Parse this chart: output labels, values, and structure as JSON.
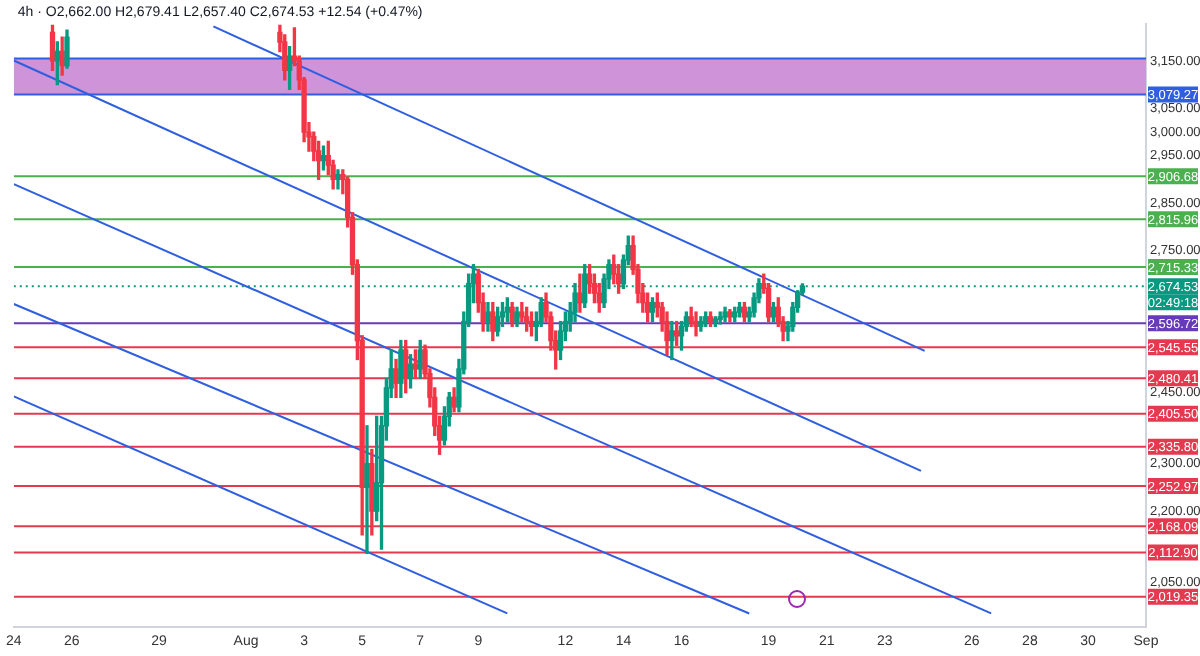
{
  "chart_data": {
    "type": "candlestick",
    "title": "4h · O2,662.00 H2,679.41 L2,657.40 C2,674.53 +12.54 (+0.47%)",
    "x": [
      "--07-25T08:00",
      "--07-25T12:00",
      "--07-25T16:00",
      "--07-25T20:00",
      "--08-02T04:00",
      "--08-02T08:00",
      "--08-02T12:00",
      "--08-02T16:00",
      "--08-02T20:00",
      "--08-03T00:00",
      "--08-03T04:00",
      "--08-03T08:00",
      "--08-03T12:00",
      "--08-03T16:00",
      "--08-03T20:00",
      "--08-04T00:00",
      "--08-04T04:00",
      "--08-04T08:00",
      "--08-04T12:00",
      "--08-04T16:00",
      "--08-04T20:00",
      "--08-05T00:00",
      "--08-05T04:00",
      "--08-05T08:00",
      "--08-05T12:00",
      "--08-05T16:00",
      "--08-05T20:00",
      "--08-06T00:00",
      "--08-06T04:00",
      "--08-06T08:00",
      "--08-06T12:00",
      "--08-06T16:00",
      "--08-06T20:00",
      "--08-07T00:00",
      "--08-07T04:00",
      "--08-07T08:00",
      "--08-07T12:00",
      "--08-07T16:00",
      "--08-07T20:00",
      "--08-08T00:00",
      "--08-08T04:00",
      "--08-08T08:00",
      "--08-08T12:00",
      "--08-08T16:00",
      "--08-08T20:00",
      "--08-09T00:00",
      "--08-09T04:00",
      "--08-09T08:00",
      "--08-09T12:00",
      "--08-09T16:00",
      "--08-09T20:00",
      "--08-10T00:00",
      "--08-10T04:00",
      "--08-10T08:00",
      "--08-10T12:00",
      "--08-10T16:00",
      "--08-10T20:00",
      "--08-11T00:00",
      "--08-11T04:00",
      "--08-11T08:00",
      "--08-11T12:00",
      "--08-11T16:00",
      "--08-11T20:00",
      "--08-12T00:00",
      "--08-12T04:00",
      "--08-12T08:00",
      "--08-12T12:00",
      "--08-12T16:00",
      "--08-12T20:00",
      "--08-13T00:00",
      "--08-13T04:00",
      "--08-13T08:00",
      "--08-13T12:00",
      "--08-13T16:00",
      "--08-13T20:00",
      "--08-14T00:00",
      "--08-14T04:00",
      "--08-14T08:00",
      "--08-14T12:00",
      "--08-14T16:00",
      "--08-14T20:00",
      "--08-15T00:00",
      "--08-15T04:00",
      "--08-15T08:00",
      "--08-15T12:00",
      "--08-15T16:00",
      "--08-15T20:00",
      "--08-16T00:00",
      "--08-16T04:00",
      "--08-16T08:00",
      "--08-16T12:00",
      "--08-16T16:00",
      "--08-16T20:00",
      "--08-17T00:00",
      "--08-17T04:00",
      "--08-17T08:00",
      "--08-17T12:00",
      "--08-17T16:00",
      "--08-17T20:00",
      "--08-18T00:00",
      "--08-18T04:00",
      "--08-18T08:00",
      "--08-18T12:00",
      "--08-18T16:00",
      "--08-18T20:00",
      "--08-19T00:00",
      "--08-19T04:00",
      "--08-19T08:00",
      "--08-19T12:00",
      "--08-19T16:00",
      "--08-19T20:00",
      "--08-20T00:00",
      "--08-20T04:00"
    ],
    "ohlc": [
      [
        3210,
        3225,
        3130,
        3150
      ],
      [
        3150,
        3190,
        3100,
        3170
      ],
      [
        3170,
        3200,
        3120,
        3140
      ],
      [
        3140,
        3215,
        3135,
        3200
      ],
      [
        3210,
        3225,
        3170,
        3190
      ],
      [
        3190,
        3205,
        3110,
        3130
      ],
      [
        3130,
        3180,
        3090,
        3160
      ],
      [
        3160,
        3220,
        3140,
        3150
      ],
      [
        3150,
        3160,
        3090,
        3110
      ],
      [
        3110,
        3115,
        2980,
        3000
      ],
      [
        3000,
        3020,
        2960,
        2990
      ],
      [
        2990,
        3000,
        2940,
        2960
      ],
      [
        2960,
        2980,
        2900,
        2940
      ],
      [
        2940,
        2970,
        2920,
        2950
      ],
      [
        2950,
        2980,
        2910,
        2930
      ],
      [
        2930,
        2940,
        2880,
        2900
      ],
      [
        2900,
        2920,
        2880,
        2910
      ],
      [
        2910,
        2920,
        2870,
        2900
      ],
      [
        2900,
        2905,
        2800,
        2820
      ],
      [
        2820,
        2830,
        2700,
        2720
      ],
      [
        2720,
        2730,
        2520,
        2560
      ],
      [
        2560,
        2570,
        2150,
        2250
      ],
      [
        2250,
        2380,
        2111,
        2300
      ],
      [
        2300,
        2330,
        2150,
        2200
      ],
      [
        2200,
        2400,
        2180,
        2260
      ],
      [
        2260,
        2400,
        2120,
        2380
      ],
      [
        2380,
        2480,
        2350,
        2460
      ],
      [
        2460,
        2540,
        2440,
        2500
      ],
      [
        2500,
        2520,
        2440,
        2470
      ],
      [
        2470,
        2560,
        2440,
        2540
      ],
      [
        2540,
        2560,
        2450,
        2480
      ],
      [
        2480,
        2530,
        2460,
        2510
      ],
      [
        2510,
        2540,
        2480,
        2500
      ],
      [
        2500,
        2560,
        2480,
        2540
      ],
      [
        2540,
        2550,
        2480,
        2490
      ],
      [
        2490,
        2500,
        2420,
        2440
      ],
      [
        2440,
        2460,
        2360,
        2380
      ],
      [
        2380,
        2400,
        2320,
        2350
      ],
      [
        2350,
        2420,
        2340,
        2400
      ],
      [
        2400,
        2450,
        2380,
        2440
      ],
      [
        2440,
        2460,
        2410,
        2420
      ],
      [
        2420,
        2520,
        2410,
        2500
      ],
      [
        2500,
        2620,
        2490,
        2600
      ],
      [
        2600,
        2700,
        2590,
        2680
      ],
      [
        2680,
        2720,
        2640,
        2700
      ],
      [
        2700,
        2710,
        2620,
        2640
      ],
      [
        2640,
        2660,
        2580,
        2600
      ],
      [
        2600,
        2640,
        2580,
        2620
      ],
      [
        2620,
        2640,
        2560,
        2580
      ],
      [
        2580,
        2630,
        2570,
        2610
      ],
      [
        2610,
        2640,
        2590,
        2620
      ],
      [
        2620,
        2650,
        2600,
        2630
      ],
      [
        2630,
        2640,
        2590,
        2600
      ],
      [
        2600,
        2630,
        2590,
        2620
      ],
      [
        2620,
        2640,
        2600,
        2610
      ],
      [
        2610,
        2630,
        2580,
        2600
      ],
      [
        2600,
        2620,
        2570,
        2590
      ],
      [
        2590,
        2620,
        2560,
        2600
      ],
      [
        2600,
        2650,
        2590,
        2640
      ],
      [
        2640,
        2660,
        2600,
        2610
      ],
      [
        2610,
        2620,
        2540,
        2560
      ],
      [
        2560,
        2580,
        2500,
        2540
      ],
      [
        2540,
        2600,
        2520,
        2580
      ],
      [
        2580,
        2620,
        2560,
        2600
      ],
      [
        2600,
        2640,
        2580,
        2620
      ],
      [
        2620,
        2680,
        2600,
        2660
      ],
      [
        2660,
        2700,
        2620,
        2640
      ],
      [
        2640,
        2720,
        2630,
        2700
      ],
      [
        2700,
        2720,
        2660,
        2680
      ],
      [
        2680,
        2700,
        2640,
        2660
      ],
      [
        2660,
        2680,
        2620,
        2640
      ],
      [
        2640,
        2700,
        2630,
        2690
      ],
      [
        2690,
        2730,
        2670,
        2720
      ],
      [
        2720,
        2740,
        2680,
        2700
      ],
      [
        2700,
        2720,
        2660,
        2680
      ],
      [
        2680,
        2740,
        2670,
        2730
      ],
      [
        2730,
        2780,
        2720,
        2760
      ],
      [
        2760,
        2780,
        2700,
        2710
      ],
      [
        2710,
        2720,
        2640,
        2660
      ],
      [
        2660,
        2680,
        2620,
        2640
      ],
      [
        2640,
        2660,
        2600,
        2620
      ],
      [
        2620,
        2650,
        2600,
        2640
      ],
      [
        2640,
        2660,
        2610,
        2630
      ],
      [
        2630,
        2640,
        2580,
        2600
      ],
      [
        2600,
        2620,
        2530,
        2560
      ],
      [
        2560,
        2600,
        2520,
        2580
      ],
      [
        2580,
        2600,
        2550,
        2570
      ],
      [
        2570,
        2600,
        2540,
        2590
      ],
      [
        2590,
        2620,
        2580,
        2610
      ],
      [
        2610,
        2630,
        2590,
        2600
      ],
      [
        2600,
        2620,
        2570,
        2590
      ],
      [
        2590,
        2610,
        2580,
        2600
      ],
      [
        2600,
        2620,
        2590,
        2610
      ],
      [
        2610,
        2620,
        2590,
        2600
      ],
      [
        2600,
        2610,
        2590,
        2605
      ],
      [
        2605,
        2620,
        2595,
        2610
      ],
      [
        2610,
        2630,
        2600,
        2620
      ],
      [
        2620,
        2625,
        2600,
        2610
      ],
      [
        2610,
        2630,
        2600,
        2620
      ],
      [
        2620,
        2640,
        2610,
        2630
      ],
      [
        2630,
        2640,
        2600,
        2610
      ],
      [
        2610,
        2630,
        2600,
        2620
      ],
      [
        2620,
        2660,
        2610,
        2650
      ],
      [
        2650,
        2690,
        2640,
        2680
      ],
      [
        2680,
        2700,
        2660,
        2670
      ],
      [
        2670,
        2680,
        2600,
        2610
      ],
      [
        2610,
        2640,
        2600,
        2630
      ],
      [
        2630,
        2650,
        2590,
        2600
      ],
      [
        2600,
        2610,
        2560,
        2580
      ],
      [
        2580,
        2600,
        2560,
        2590
      ],
      [
        2590,
        2640,
        2580,
        2630
      ],
      [
        2630,
        2665,
        2620,
        2662
      ],
      [
        2662,
        2679.41,
        2657.4,
        2674.53
      ]
    ],
    "series": [
      {
        "type": "line",
        "color": "#2f5fe0",
        "x": [
          "--07-30T21:00",
          "--08-24T09:00"
        ],
        "values": [
          3223,
          2538
        ]
      },
      {
        "type": "line",
        "color": "#2f5fe0",
        "x": [
          "--07-24T00:00",
          "--08-24T06:00"
        ],
        "values": [
          3151,
          2285
        ]
      },
      {
        "type": "line",
        "color": "#2f5fe0",
        "x": [
          "--07-24T00:00",
          "--08-26T16:00"
        ],
        "values": [
          2890,
          1984
        ]
      },
      {
        "type": "line",
        "color": "#2f5fe0",
        "x": [
          "--07-24T00:00",
          "--08-18T08:00"
        ],
        "values": [
          2637,
          1984
        ]
      },
      {
        "type": "line",
        "color": "#2f5fe0",
        "x": [
          "--07-24T00:00",
          "--08-10T00:00"
        ],
        "values": [
          2442,
          1984
        ]
      }
    ],
    "bands": [
      {
        "axis": "y",
        "from": 3079.27,
        "to": 3155,
        "color": "#ce93d8"
      }
    ],
    "ref_lines": [
      {
        "axis": "y",
        "value": 3155,
        "label": null,
        "color": "#2f5fe0"
      },
      {
        "axis": "y",
        "value": 3079.27,
        "label": "3,079.27",
        "color": "#2f5fe0"
      },
      {
        "axis": "y",
        "value": 2906.68,
        "label": "2,906.68",
        "color": "#4caf50"
      },
      {
        "axis": "y",
        "value": 2815.96,
        "label": "2,815.96",
        "color": "#4caf50"
      },
      {
        "axis": "y",
        "value": 2715.33,
        "label": "2,715.33",
        "color": "#4caf50"
      },
      {
        "axis": "y",
        "value": 2674.53,
        "label": "2,674.53",
        "color": "#089981",
        "line_style": "dotted"
      },
      {
        "axis": "y",
        "value": 2596.72,
        "label": "2,596.72",
        "color": "#673ab7"
      },
      {
        "axis": "y",
        "value": 2545.55,
        "label": "2,545.55",
        "color": "#e53950"
      },
      {
        "axis": "y",
        "value": 2480.41,
        "label": "2,480.41",
        "color": "#e53950"
      },
      {
        "axis": "y",
        "value": 2405.5,
        "label": "2,405.50",
        "color": "#e53950"
      },
      {
        "axis": "y",
        "value": 2335.8,
        "label": "2,335.80",
        "color": "#e53950"
      },
      {
        "axis": "y",
        "value": 2252.97,
        "label": "2,252.97",
        "color": "#e53950"
      },
      {
        "axis": "y",
        "value": 2168.09,
        "label": "2,168.09",
        "color": "#e53950"
      },
      {
        "axis": "y",
        "value": 2112.9,
        "label": "2,112.90",
        "color": "#e53950"
      },
      {
        "axis": "y",
        "value": 2019.35,
        "label": "2,019.35",
        "color": "#e53950"
      }
    ],
    "annotations": [
      "02:49:18"
    ],
    "ylim": [
      1955,
      3228
    ],
    "yticks": [
      {
        "value": 3150,
        "label": "3,150.00"
      },
      {
        "value": 3050,
        "label": "3,050.00"
      },
      {
        "value": 3000,
        "label": "3,000.00"
      },
      {
        "value": 2950,
        "label": "2,950.00"
      },
      {
        "value": 2850,
        "label": "2,850.00"
      },
      {
        "value": 2750,
        "label": "2,750.00"
      },
      {
        "value": 2450,
        "label": "2,450.00"
      },
      {
        "value": 2300,
        "label": "2,300.00"
      },
      {
        "value": 2200,
        "label": "2,200.00"
      },
      {
        "value": 2050,
        "label": "2,050.00"
      }
    ],
    "xlim": [
      "--07-24",
      "--09-01"
    ],
    "xticks": [
      {
        "value": "--07-24",
        "label": "24"
      },
      {
        "value": "--07-26",
        "label": "26"
      },
      {
        "value": "--07-29",
        "label": "29"
      },
      {
        "value": "--08-01",
        "label": "Aug"
      },
      {
        "value": "--08-03",
        "label": "3"
      },
      {
        "value": "--08-05",
        "label": "5"
      },
      {
        "value": "--08-07",
        "label": "7"
      },
      {
        "value": "--08-09",
        "label": "9"
      },
      {
        "value": "--08-12",
        "label": "12"
      },
      {
        "value": "--08-14",
        "label": "14"
      },
      {
        "value": "--08-16",
        "label": "16"
      },
      {
        "value": "--08-19",
        "label": "19"
      },
      {
        "value": "--08-21",
        "label": "21"
      },
      {
        "value": "--08-23",
        "label": "23"
      },
      {
        "value": "--08-26",
        "label": "26"
      },
      {
        "value": "--08-28",
        "label": "28"
      },
      {
        "value": "--08-30",
        "label": "30"
      },
      {
        "value": "--09-01",
        "label": "Sep"
      }
    ],
    "grid": false,
    "legend": false
  }
}
